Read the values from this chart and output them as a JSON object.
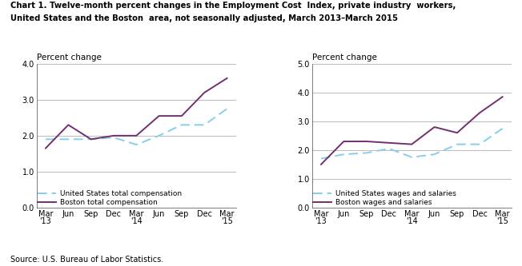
{
  "title_line1": "Chart 1. Twelve-month percent changes in the Employment Cost  Index, private industry  workers,",
  "title_line2": "United States and the Boston  area, not seasonally adjusted, March 2013–March 2015",
  "source": "Source: U.S. Bureau of Labor Statistics.",
  "x_labels": [
    "Mar\n'13",
    "Jun",
    "Sep",
    "Dec",
    "Mar\n'14",
    "Jun",
    "Sep",
    "Dec",
    "Mar\n'15"
  ],
  "left_ylabel": "Percent change",
  "right_ylabel": "Percent change",
  "left_ylim": [
    0.0,
    4.0
  ],
  "right_ylim": [
    0.0,
    5.0
  ],
  "left_yticks": [
    0.0,
    1.0,
    2.0,
    3.0,
    4.0
  ],
  "right_yticks": [
    0.0,
    1.0,
    2.0,
    3.0,
    4.0,
    5.0
  ],
  "us_total_comp": [
    1.9,
    1.9,
    1.9,
    1.95,
    1.75,
    2.0,
    2.3,
    2.3,
    2.75
  ],
  "boston_total_comp": [
    1.65,
    2.3,
    1.9,
    2.0,
    2.0,
    2.55,
    2.55,
    3.2,
    3.6
  ],
  "us_wages_salaries": [
    1.7,
    1.85,
    1.9,
    2.05,
    1.75,
    1.85,
    2.2,
    2.2,
    2.75
  ],
  "boston_wages_salaries": [
    1.5,
    2.3,
    2.3,
    2.25,
    2.2,
    2.8,
    2.6,
    3.3,
    3.85
  ],
  "us_color": "#87CEEB",
  "boston_color": "#722F6E",
  "left_legend1": "United States total compensation",
  "left_legend2": "Boston total compensation",
  "right_legend1": "United States wages and salaries",
  "right_legend2": "Boston wages and salaries",
  "grid_color": "#a0a0a0",
  "background_color": "#ffffff"
}
